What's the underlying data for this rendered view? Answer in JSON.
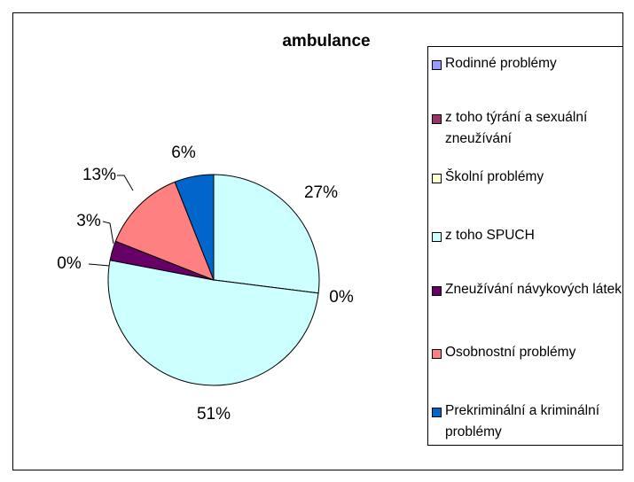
{
  "chart_data": {
    "type": "pie",
    "title": "ambulance",
    "series": [
      {
        "name": "Rodinné problémy",
        "color": "#9999ff",
        "values": [
          27
        ],
        "value_labels": [
          "27%"
        ]
      },
      {
        "name": "z toho týrání a sexuální zneužívání",
        "color": "#993366",
        "values": [
          0
        ],
        "value_labels": [
          "0%"
        ]
      },
      {
        "name": "Školní problémy",
        "color": "#ffffcc",
        "values": [
          0
        ],
        "value_labels": [
          "0%"
        ]
      },
      {
        "name": "z toho SPUCH",
        "color": "#ccffff",
        "values": [
          51
        ],
        "value_labels": [
          "51%"
        ]
      },
      {
        "name": "Zneužívání návykových látek",
        "color": "#660066",
        "values": [
          3
        ],
        "value_labels": [
          "3%"
        ]
      },
      {
        "name": "Osobnostní problémy",
        "color": "#ff8080",
        "values": [
          13
        ],
        "value_labels": [
          "13%"
        ]
      },
      {
        "name": "Prekriminální a kriminální problémy",
        "color": "#0066cc",
        "values": [
          6
        ],
        "value_labels": [
          "6%"
        ]
      }
    ],
    "slice_colors": [
      "#ccffff",
      "#ccffff",
      "#ccffff",
      "#ccffff",
      "#660066",
      "#ff8080",
      "#0066cc"
    ],
    "legend": "right"
  }
}
